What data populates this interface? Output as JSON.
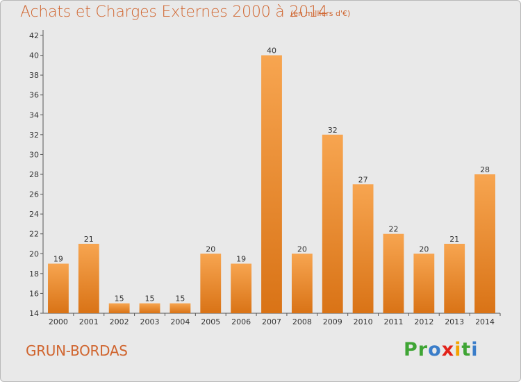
{
  "chart_data": {
    "type": "bar",
    "title": "Achats et Charges Externes 2000 à 2014",
    "unit": "(en milliers d'€)",
    "categories": [
      "2000",
      "2001",
      "2002",
      "2003",
      "2004",
      "2005",
      "2006",
      "2007",
      "2008",
      "2009",
      "2010",
      "2011",
      "2012",
      "2013",
      "2014"
    ],
    "values": [
      19,
      21,
      15,
      15,
      15,
      20,
      19,
      40,
      20,
      32,
      27,
      22,
      20,
      21,
      28
    ],
    "ylim": [
      14,
      42
    ],
    "yticks": [
      14,
      16,
      18,
      20,
      22,
      24,
      26,
      28,
      30,
      32,
      34,
      36,
      38,
      40,
      42
    ],
    "grid": false,
    "bar_color_light": "#f7a550",
    "bar_color_dark": "#d97316"
  },
  "footer": {
    "commune": "GRUN-BORDAS",
    "logo_letters": [
      "P",
      "r",
      "o",
      "x",
      "i",
      "t",
      "i"
    ],
    "logo_colors": [
      "#3fa535",
      "#3fa535",
      "#3a7dc9",
      "#e2231a",
      "#f4a300",
      "#3fa535",
      "#3a7dc9"
    ]
  },
  "colors": {
    "title": "#d0652f",
    "background": "#e9e9e9"
  }
}
